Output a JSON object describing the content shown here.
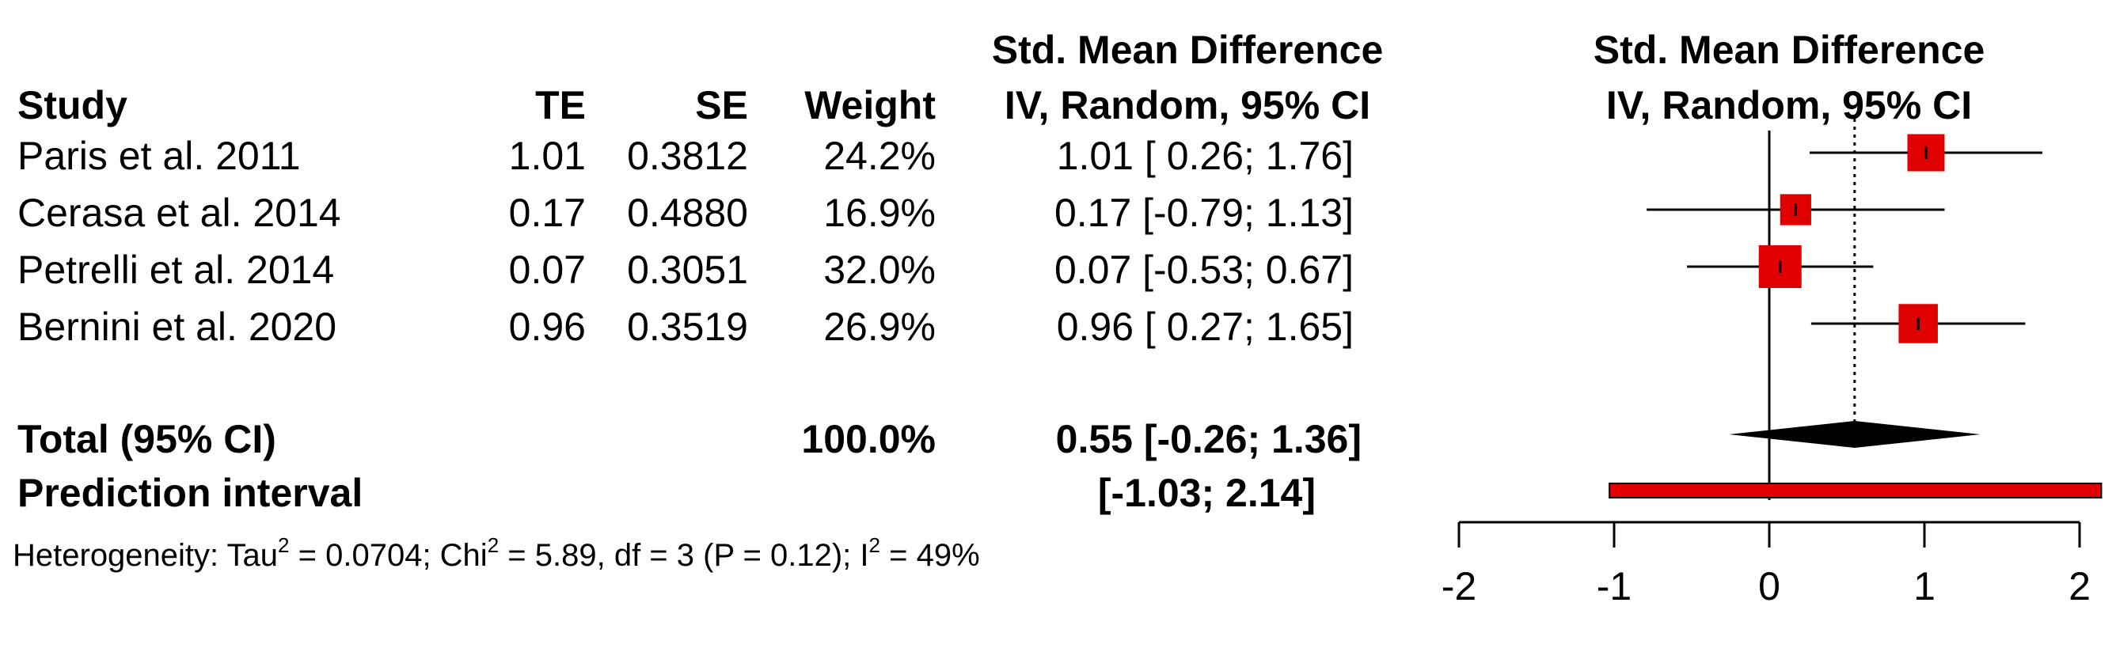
{
  "headers": {
    "study": "Study",
    "te": "TE",
    "se": "SE",
    "weight": "Weight",
    "smd_line1": "Std. Mean Difference",
    "smd_line2": "IV, Random, 95% CI",
    "plot_line1": "Std. Mean Difference",
    "plot_line2": "IV, Random, 95% CI"
  },
  "studies": [
    {
      "name": "Paris et al. 2011",
      "te": "1.01",
      "se": "0.3812",
      "weight": "24.2%",
      "ci_text": "1.01 [ 0.26; 1.76]"
    },
    {
      "name": "Cerasa et al. 2014",
      "te": "0.17",
      "se": "0.4880",
      "weight": "16.9%",
      "ci_text": "0.17 [-0.79; 1.13]"
    },
    {
      "name": "Petrelli et al. 2014",
      "te": "0.07",
      "se": "0.3051",
      "weight": "32.0%",
      "ci_text": "0.07 [-0.53; 0.67]"
    },
    {
      "name": "Bernini et al. 2020",
      "te": "0.96",
      "se": "0.3519",
      "weight": "26.9%",
      "ci_text": "0.96 [ 0.27; 1.65]"
    }
  ],
  "total": {
    "label": "Total (95% CI)",
    "weight": "100.0%",
    "ci_text": "0.55 [-0.26; 1.36]"
  },
  "prediction": {
    "label": "Prediction interval",
    "ci_text": "[-1.03; 2.14]"
  },
  "heterogeneity": {
    "prefix": "Heterogeneity: Tau",
    "sup1": "2",
    "part2": " = 0.0704; Chi",
    "sup2": "2",
    "part3": " = 5.89, df = 3 (P = 0.12); I",
    "sup3": "2",
    "part4": " = 49%"
  },
  "colors": {
    "box": "#e00000",
    "prediction": "#e00000",
    "diamond": "#000000",
    "line": "#000000"
  },
  "chart_data": {
    "type": "forest",
    "studies": [
      {
        "name": "Paris et al. 2011",
        "estimate": 1.01,
        "lower": 0.26,
        "upper": 1.76,
        "weight": 24.2
      },
      {
        "name": "Cerasa et al. 2014",
        "estimate": 0.17,
        "lower": -0.79,
        "upper": 1.13,
        "weight": 16.9
      },
      {
        "name": "Petrelli et al. 2014",
        "estimate": 0.07,
        "lower": -0.53,
        "upper": 0.67,
        "weight": 32.0
      },
      {
        "name": "Bernini et al. 2020",
        "estimate": 0.96,
        "lower": 0.27,
        "upper": 1.65,
        "weight": 26.9
      }
    ],
    "pooled": {
      "estimate": 0.55,
      "lower": -0.26,
      "upper": 1.36
    },
    "prediction_interval": {
      "lower": -1.03,
      "upper": 2.14
    },
    "xlim": [
      -2,
      2
    ],
    "xticks": [
      -2,
      -1,
      0,
      1,
      2
    ],
    "xtick_labels": [
      "-2",
      "-1",
      "0",
      "1",
      "2"
    ],
    "null_line": 0,
    "summary_line": 0.55
  }
}
